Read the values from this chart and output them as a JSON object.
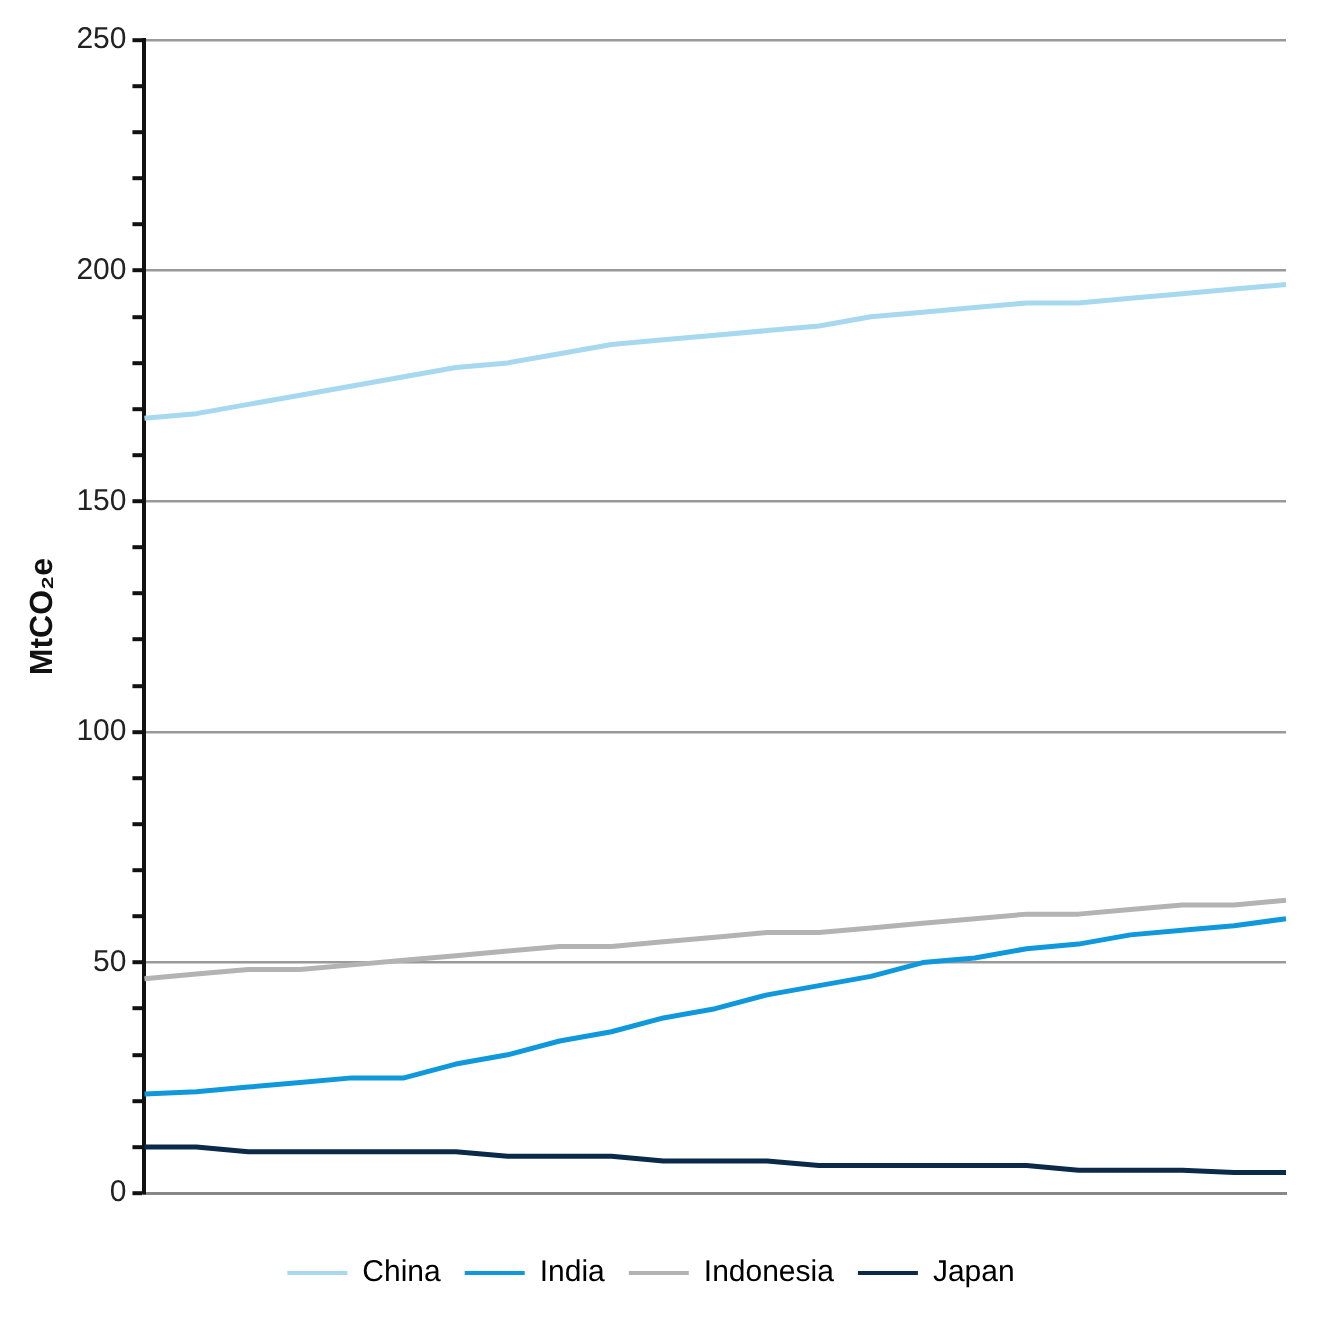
{
  "chart_data": {
    "type": "line",
    "ylabel": "MtCO₂e",
    "categories": [
      null,
      null,
      null,
      null,
      null,
      null,
      null,
      null,
      null,
      null,
      null,
      null,
      null,
      null,
      null,
      null,
      null,
      null,
      null,
      null,
      null,
      null,
      null
    ],
    "series": [
      {
        "name": "China",
        "color": "#a6d8f0",
        "values": [
          168,
          169,
          171,
          173,
          175,
          177,
          179,
          180,
          182,
          184,
          185,
          186,
          187,
          188,
          190,
          191,
          192,
          193,
          193,
          194,
          195,
          196,
          197
        ]
      },
      {
        "name": "India",
        "color": "#0f98dc",
        "values": [
          21.5,
          22,
          23,
          24,
          25,
          25,
          28,
          30,
          33,
          35,
          38,
          40,
          43,
          45,
          47,
          50,
          51,
          53,
          54,
          56,
          57,
          58,
          59.5
        ]
      },
      {
        "name": "Indonesia",
        "color": "#b3b3b3",
        "values": [
          46.5,
          47.5,
          48.5,
          48.5,
          49.5,
          50.5,
          51.5,
          52.5,
          53.5,
          53.5,
          54.5,
          55.5,
          56.5,
          56.5,
          57.5,
          58.5,
          59.5,
          60.5,
          60.5,
          61.5,
          62.5,
          62.5,
          63.5
        ]
      },
      {
        "name": "Japan",
        "color": "#0b2a4a",
        "values": [
          10,
          10,
          9,
          9,
          9,
          9,
          9,
          8,
          8,
          8,
          7,
          7,
          7,
          6,
          6,
          6,
          6,
          6,
          5,
          5,
          5,
          4.5,
          4.5
        ]
      }
    ],
    "ylim": [
      0,
      250
    ],
    "yticks": [
      0,
      {
        "value": 10,
        "label": null
      },
      {
        "value": 20,
        "label": null
      },
      {
        "value": 30,
        "label": null
      },
      {
        "value": 40,
        "label": null
      },
      50,
      {
        "value": 60,
        "label": null
      },
      {
        "value": 70,
        "label": null
      },
      {
        "value": 80,
        "label": null
      },
      {
        "value": 90,
        "label": null
      },
      100,
      {
        "value": 110,
        "label": null
      },
      {
        "value": 120,
        "label": null
      },
      {
        "value": 130,
        "label": null
      },
      {
        "value": 140,
        "label": null
      },
      150,
      {
        "value": 160,
        "label": null
      },
      {
        "value": 170,
        "label": null
      },
      {
        "value": 180,
        "label": null
      },
      {
        "value": 190,
        "label": null
      },
      200,
      {
        "value": 210,
        "label": null
      },
      {
        "value": 220,
        "label": null
      },
      {
        "value": 230,
        "label": null
      },
      {
        "value": 240,
        "label": null
      },
      250
    ],
    "grid": "y",
    "legend": "bottom",
    "marker": "none",
    "line_style": "solid"
  }
}
